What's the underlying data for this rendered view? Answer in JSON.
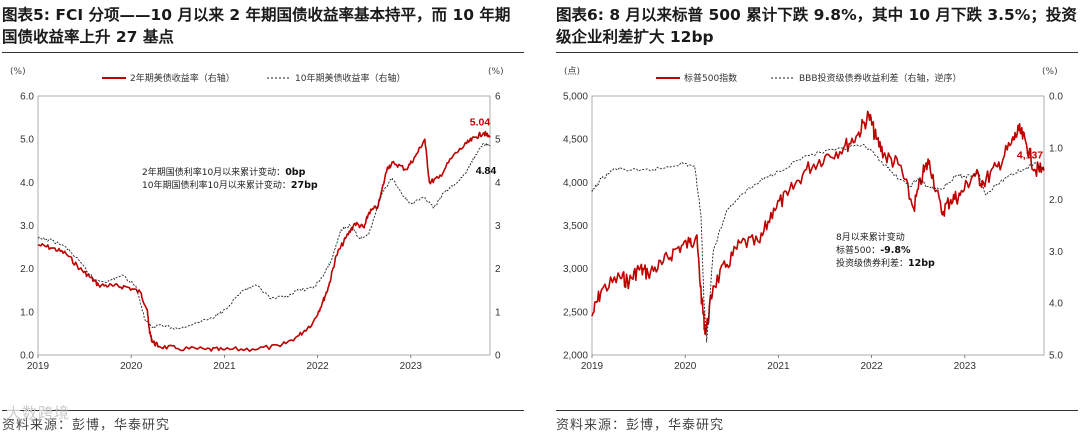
{
  "left": {
    "title": "图表5:  FCI 分项——10 月以来 2 年期国债收益率基本持平，而 10 年期国债收益率上升 27 基点",
    "source": "资料来源：彭博，华泰研究",
    "chart_data": {
      "type": "line",
      "left_unit": "(%)",
      "right_unit": "(%)",
      "left_ylim": [
        0,
        6
      ],
      "left_yticks": [
        "0.0",
        "1.0",
        "2.0",
        "3.0",
        "4.0",
        "5.0",
        "6.0"
      ],
      "right_ylim": [
        0,
        6
      ],
      "right_yticks": [
        "0",
        "1",
        "2",
        "3",
        "4",
        "5",
        "6"
      ],
      "x_ticks": [
        "2019",
        "2020",
        "2021",
        "2022",
        "2023"
      ],
      "x_range": [
        2019.0,
        2023.85
      ],
      "legend": [
        "2年期美债收益率（右轴）",
        "10年期美债收益率（右轴）"
      ],
      "series": [
        {
          "name": "2年期美债收益率（右轴）",
          "color": "#c00000",
          "style": "solid",
          "x": [
            2019.0,
            2019.15,
            2019.3,
            2019.45,
            2019.55,
            2019.65,
            2019.8,
            2019.95,
            2020.1,
            2020.17,
            2020.2,
            2020.23,
            2020.3,
            2020.5,
            2020.8,
            2021.0,
            2021.3,
            2021.6,
            2021.8,
            2021.95,
            2022.05,
            2022.12,
            2022.2,
            2022.3,
            2022.4,
            2022.5,
            2022.55,
            2022.65,
            2022.75,
            2022.82,
            2022.95,
            2023.05,
            2023.15,
            2023.2,
            2023.3,
            2023.45,
            2023.6,
            2023.7,
            2023.78,
            2023.85
          ],
          "y": [
            2.55,
            2.48,
            2.35,
            2.0,
            1.82,
            1.62,
            1.6,
            1.58,
            1.45,
            1.05,
            0.5,
            0.3,
            0.2,
            0.15,
            0.13,
            0.12,
            0.14,
            0.2,
            0.45,
            0.75,
            1.2,
            1.6,
            2.3,
            2.7,
            3.05,
            2.95,
            3.3,
            3.45,
            4.35,
            4.45,
            4.3,
            4.6,
            5.0,
            4.0,
            4.1,
            4.6,
            4.9,
            5.05,
            5.15,
            5.04
          ]
        },
        {
          "name": "10年期美债收益率（右轴）",
          "color": "#222222",
          "style": "dashed",
          "x": [
            2019.0,
            2019.15,
            2019.3,
            2019.45,
            2019.6,
            2019.75,
            2019.9,
            2020.05,
            2020.15,
            2020.22,
            2020.3,
            2020.5,
            2020.7,
            2020.9,
            2021.0,
            2021.2,
            2021.35,
            2021.5,
            2021.65,
            2021.8,
            2021.95,
            2022.05,
            2022.15,
            2022.25,
            2022.35,
            2022.45,
            2022.55,
            2022.7,
            2022.8,
            2022.9,
            2023.0,
            2023.15,
            2023.25,
            2023.35,
            2023.5,
            2023.6,
            2023.7,
            2023.78,
            2023.85
          ],
          "y": [
            2.7,
            2.65,
            2.5,
            2.15,
            1.75,
            1.7,
            1.85,
            1.6,
            0.8,
            0.65,
            0.7,
            0.6,
            0.75,
            0.88,
            1.05,
            1.5,
            1.6,
            1.3,
            1.35,
            1.5,
            1.55,
            1.8,
            2.2,
            2.9,
            3.0,
            2.7,
            2.8,
            3.8,
            4.1,
            3.75,
            3.5,
            3.65,
            3.4,
            3.75,
            4.0,
            4.25,
            4.65,
            4.9,
            4.84
          ]
        }
      ],
      "annotation": [
        {
          "text": "2年期国债利率10月以来累计变动：",
          "value": "0bp"
        },
        {
          "text": "10年期国债利率10月以来累计变动：",
          "value": "27bp"
        }
      ],
      "end_labels": [
        {
          "series": "2年期美债收益率（右轴）",
          "text": "5.04",
          "color": "#c00000"
        },
        {
          "series": "10年期美债收益率（右轴）",
          "text": "4.84",
          "color": "#000000"
        }
      ]
    }
  },
  "right": {
    "title": "图表6:  8 月以来标普 500 累计下跌 9.8%，其中 10 月下跌 3.5%；投资级企业利差扩大 12bp",
    "source": "资料来源：彭博，华泰研究",
    "chart_data": {
      "type": "line",
      "left_unit": "(点)",
      "right_unit": "(%)",
      "left_ylim": [
        2000,
        5000
      ],
      "left_yticks": [
        "2,000",
        "2,500",
        "3,000",
        "3,500",
        "4,000",
        "4,500",
        "5,000"
      ],
      "right_ylim": [
        0.0,
        5.0
      ],
      "right_inverted": true,
      "right_yticks": [
        "0.0",
        "1.0",
        "2.0",
        "3.0",
        "4.0",
        "5.0"
      ],
      "x_ticks": [
        "2019",
        "2020",
        "2021",
        "2022",
        "2023"
      ],
      "x_range": [
        2019.0,
        2023.85
      ],
      "legend": [
        "标普500指数",
        "BBB投资级债券收益利差（右轴，逆序）"
      ],
      "series": [
        {
          "name": "标普500指数",
          "color": "#c00000",
          "style": "solid",
          "axis": "left",
          "x": [
            2019.0,
            2019.1,
            2019.3,
            2019.4,
            2019.5,
            2019.6,
            2019.75,
            2019.9,
            2020.05,
            2020.12,
            2020.18,
            2020.22,
            2020.3,
            2020.45,
            2020.6,
            2020.8,
            2020.95,
            2021.1,
            2021.3,
            2021.5,
            2021.7,
            2021.85,
            2021.97,
            2022.05,
            2022.15,
            2022.3,
            2022.45,
            2022.55,
            2022.62,
            2022.75,
            2022.85,
            2022.95,
            2023.1,
            2023.2,
            2023.35,
            2023.5,
            2023.58,
            2023.66,
            2023.75,
            2023.85
          ],
          "y": [
            2450,
            2750,
            2900,
            2850,
            3000,
            2950,
            3050,
            3230,
            3300,
            3380,
            2600,
            2240,
            2800,
            3050,
            3300,
            3300,
            3700,
            3850,
            4150,
            4300,
            4400,
            4550,
            4780,
            4500,
            4300,
            4200,
            3700,
            4100,
            4250,
            3650,
            3800,
            3850,
            4100,
            4000,
            4180,
            4450,
            4600,
            4450,
            4150,
            4137
          ]
        },
        {
          "name": "BBB投资级债券收益利差（右轴，逆序）",
          "color": "#222222",
          "style": "dashed",
          "axis": "right",
          "x": [
            2019.0,
            2019.1,
            2019.25,
            2019.5,
            2019.75,
            2019.95,
            2020.1,
            2020.17,
            2020.2,
            2020.23,
            2020.3,
            2020.45,
            2020.6,
            2020.8,
            2021.0,
            2021.3,
            2021.6,
            2021.9,
            2022.05,
            2022.2,
            2022.4,
            2022.5,
            2022.6,
            2022.75,
            2022.9,
            2023.0,
            2023.15,
            2023.22,
            2023.35,
            2023.5,
            2023.65,
            2023.78,
            2023.85
          ],
          "y": [
            1.85,
            1.6,
            1.4,
            1.45,
            1.4,
            1.3,
            1.35,
            2.3,
            3.9,
            4.75,
            3.0,
            2.2,
            1.9,
            1.65,
            1.45,
            1.15,
            1.05,
            0.95,
            1.15,
            1.45,
            1.75,
            1.6,
            1.75,
            1.8,
            1.55,
            1.55,
            1.5,
            1.9,
            1.7,
            1.5,
            1.4,
            1.3,
            1.45
          ]
        }
      ],
      "annotation_title": "8月以来累计变动",
      "annotation": [
        {
          "text": "标普500：",
          "value": "-9.8%"
        },
        {
          "text": "投资级债券利差：",
          "value": "12bp"
        }
      ],
      "end_labels": [
        {
          "series": "标普500指数",
          "text": "4,137",
          "color": "#c00000"
        }
      ]
    }
  },
  "watermark": "大数跨境"
}
